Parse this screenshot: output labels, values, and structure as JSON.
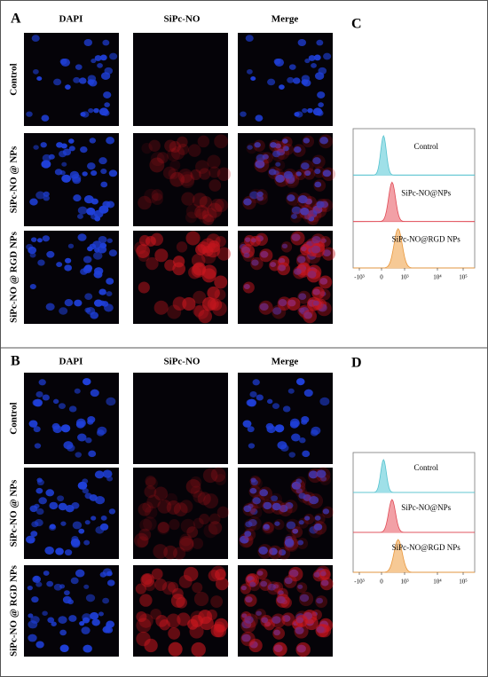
{
  "panels": [
    {
      "label": "A",
      "columns": [
        "DAPI",
        "SiPc-NO",
        "Merge"
      ],
      "rows": [
        "Control",
        "SiPc-NO @ NPs",
        "SiPc-NO @ RGD NPs"
      ]
    },
    {
      "label": "B",
      "columns": [
        "DAPI",
        "SiPc-NO",
        "Merge"
      ],
      "rows": [
        "Control",
        "SiPc-NO @ NPs",
        "SiPc-NO @ RGD NPs"
      ]
    }
  ],
  "flow": [
    {
      "label": "C",
      "samples": [
        "Control",
        "SiPc-NO@NPs",
        "SiPc-NO@RGD NPs"
      ],
      "ticks": [
        "-10³",
        "0",
        "10³",
        "10⁴",
        "10⁵"
      ]
    },
    {
      "label": "D",
      "samples": [
        "Control",
        "SiPc-NO@NPs",
        "SiPc-NO@RGD NPs"
      ],
      "ticks": [
        "-10³",
        "0",
        "10³",
        "10⁴",
        "10⁵"
      ]
    }
  ]
}
